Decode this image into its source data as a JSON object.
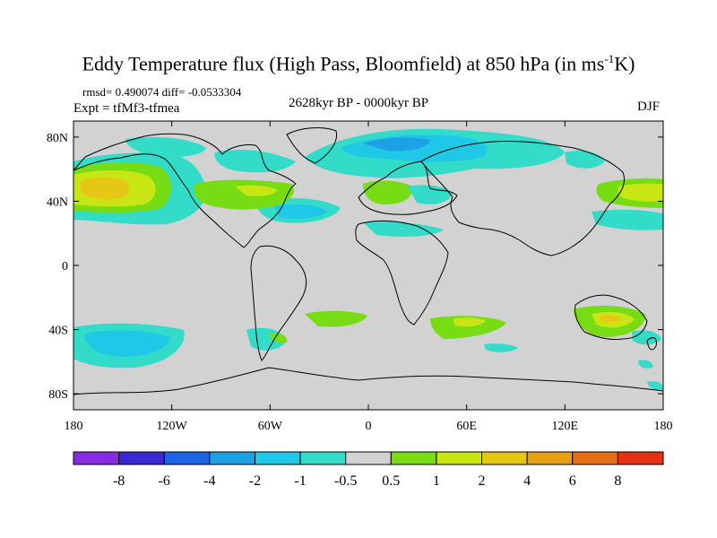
{
  "title_main": "Eddy Temperature flux (High Pass, Bloomfield) at 850 hPa (in ms",
  "title_sup": "-1",
  "title_end": "K)",
  "stats": "rmsd= 0.490074 diff= -0.0533304",
  "experiment": "Expt = tfMf3-tfmea",
  "period": "2628kyr BP - 0000kyr BP",
  "season": "DJF",
  "lat_labels": [
    "80N",
    "40N",
    "0",
    "40S",
    "80S"
  ],
  "lat_values": [
    80,
    40,
    0,
    -40,
    -80
  ],
  "lon_labels": [
    "180",
    "120W",
    "60W",
    "0",
    "60E",
    "120E",
    "180"
  ],
  "lon_values": [
    -180,
    -120,
    -60,
    0,
    60,
    120,
    180
  ],
  "colorbar": {
    "colors": [
      "#8a2be2",
      "#3c28d2",
      "#1e64e6",
      "#1ea0e6",
      "#1ec8e6",
      "#32dcc8",
      "#d2d2d2",
      "#78dc14",
      "#c8e614",
      "#e6c814",
      "#e6a014",
      "#e66e14",
      "#e63214"
    ],
    "labels": [
      "-8",
      "-6",
      "-4",
      "-2",
      "-1",
      "-0.5",
      "0.5",
      "1",
      "2",
      "4",
      "6",
      "8"
    ]
  },
  "colors": {
    "background": "#d2d2d2",
    "coast": "#000000"
  }
}
